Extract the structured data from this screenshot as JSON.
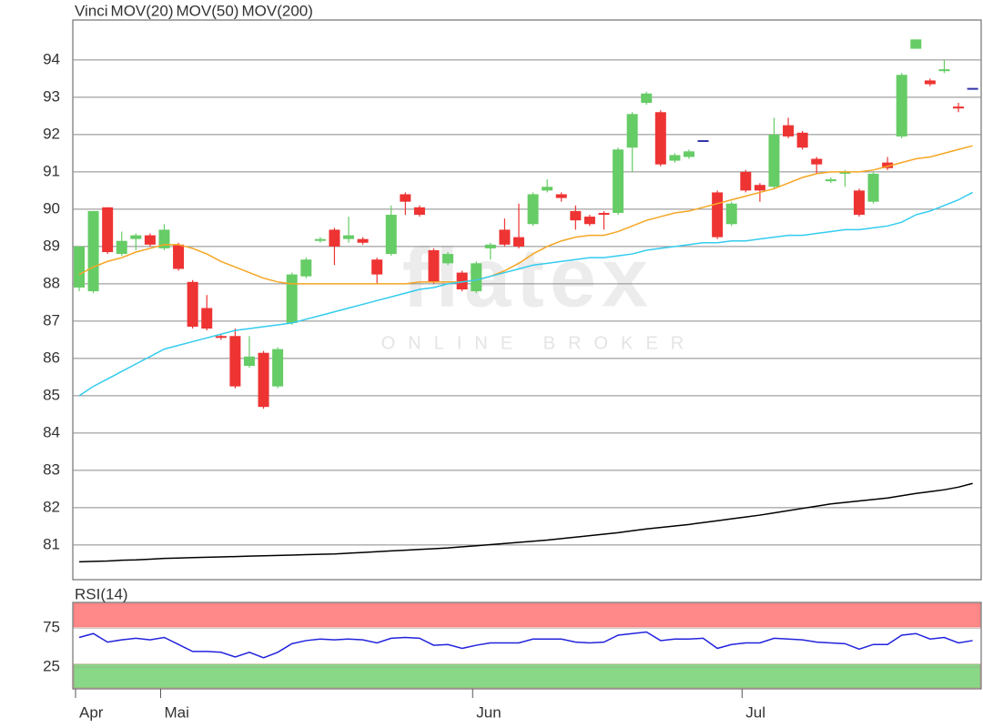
{
  "chart_data": [
    {
      "type": "candlestick",
      "watermark": {
        "brand": "flatex",
        "tagline": "ONLINE BROKER"
      },
      "categories": [
        "Apr",
        null,
        null,
        null,
        null,
        null,
        "Mai",
        null,
        null,
        null,
        null,
        null,
        null,
        null,
        null,
        null,
        null,
        null,
        null,
        null,
        null,
        null,
        null,
        null,
        null,
        null,
        null,
        null,
        "Jun",
        null,
        null,
        null,
        null,
        null,
        null,
        null,
        null,
        null,
        null,
        null,
        null,
        null,
        null,
        null,
        null,
        null,
        null,
        "Jul",
        null,
        null,
        null,
        null,
        null,
        null,
        null,
        null,
        null,
        null,
        null,
        null,
        null,
        null,
        null,
        null
      ],
      "ylim": [
        80.07,
        95.07
      ],
      "yticks": [
        81,
        82,
        83,
        84,
        85,
        86,
        87,
        88,
        89,
        90,
        91,
        92,
        93,
        94
      ],
      "grid": true,
      "up_color": "#66cc66",
      "down_color": "#ee3333",
      "doji_color": "#3333aa",
      "series": [
        {
          "name": "Vinci",
          "color": "#ff5a2b",
          "open": [
            87.9,
            87.8,
            90.05,
            88.8,
            89.2,
            89.3,
            88.95,
            89.05,
            88.05,
            87.35,
            86.6,
            86.6,
            85.8,
            86.15,
            85.25,
            86.95,
            88.2,
            89.15,
            89.45,
            89.2,
            89.2,
            88.65,
            88.8,
            90.4,
            90.05,
            88.9,
            88.55,
            88.3,
            87.8,
            88.95,
            89.45,
            89.25,
            89.6,
            90.5,
            90.4,
            89.95,
            89.8,
            89.9,
            89.9,
            91.65,
            92.85,
            92.6,
            91.3,
            91.4,
            91.85,
            90.45,
            89.6,
            91.0,
            90.65,
            90.6,
            92.25,
            92.05,
            91.35,
            90.75,
            90.95,
            90.5,
            90.2,
            91.25,
            91.95,
            94.3,
            93.45,
            93.7,
            92.75,
            93.25
          ],
          "high": [
            89.0,
            89.95,
            90.05,
            89.4,
            89.35,
            89.35,
            89.6,
            89.1,
            88.1,
            87.7,
            86.65,
            86.8,
            86.6,
            86.2,
            86.3,
            88.3,
            88.7,
            89.25,
            89.5,
            89.8,
            89.25,
            88.7,
            90.1,
            90.45,
            90.1,
            88.95,
            88.85,
            88.35,
            88.6,
            89.1,
            89.75,
            90.15,
            90.45,
            90.8,
            90.45,
            90.1,
            89.85,
            89.95,
            91.65,
            92.6,
            93.15,
            92.65,
            91.5,
            91.6,
            91.85,
            90.5,
            90.2,
            91.05,
            90.7,
            92.45,
            92.45,
            92.1,
            91.4,
            90.85,
            91.05,
            90.55,
            91.0,
            91.4,
            93.65,
            94.55,
            93.5,
            94.0,
            92.85,
            93.25
          ],
          "low": [
            87.8,
            87.75,
            88.8,
            88.75,
            88.9,
            89.0,
            88.9,
            88.35,
            86.8,
            86.75,
            86.5,
            85.2,
            85.75,
            84.65,
            85.2,
            86.9,
            88.15,
            89.1,
            88.5,
            89.1,
            89.05,
            88.0,
            88.75,
            89.85,
            89.8,
            88.0,
            88.5,
            87.8,
            87.75,
            88.65,
            89.0,
            88.95,
            89.55,
            90.45,
            90.2,
            89.45,
            89.55,
            89.45,
            89.85,
            91.0,
            92.8,
            91.15,
            91.25,
            91.35,
            91.85,
            89.2,
            89.55,
            90.45,
            90.2,
            90.55,
            91.9,
            91.6,
            90.95,
            90.7,
            90.6,
            89.8,
            90.15,
            91.05,
            91.9,
            94.3,
            93.3,
            93.65,
            92.6,
            93.25
          ],
          "close": [
            89.0,
            89.95,
            88.85,
            89.15,
            89.3,
            89.05,
            89.45,
            88.4,
            86.85,
            86.8,
            86.55,
            85.25,
            86.05,
            84.7,
            86.25,
            88.25,
            88.65,
            89.2,
            89.0,
            89.3,
            89.1,
            88.25,
            89.85,
            90.2,
            89.85,
            88.05,
            88.8,
            87.85,
            88.55,
            89.05,
            89.05,
            89.0,
            90.4,
            90.6,
            90.3,
            89.7,
            89.6,
            89.85,
            91.6,
            92.55,
            93.1,
            91.2,
            91.45,
            91.55,
            91.85,
            89.25,
            90.15,
            90.5,
            90.5,
            92.0,
            91.95,
            91.65,
            91.2,
            90.8,
            91.0,
            89.85,
            90.95,
            91.1,
            93.6,
            94.55,
            93.35,
            93.75,
            92.7,
            93.25
          ]
        },
        {
          "name": "MOV(20)",
          "color": "#f5a623",
          "values": [
            88.25,
            88.45,
            88.6,
            88.7,
            88.85,
            88.95,
            89.05,
            89.05,
            88.95,
            88.8,
            88.6,
            88.45,
            88.3,
            88.15,
            88.05,
            88.0,
            88.0,
            88.0,
            88.0,
            88.0,
            88.0,
            88.0,
            88.0,
            88.0,
            88.05,
            88.05,
            88.05,
            88.05,
            88.1,
            88.2,
            88.35,
            88.55,
            88.8,
            89.0,
            89.15,
            89.25,
            89.3,
            89.3,
            89.4,
            89.55,
            89.7,
            89.8,
            89.9,
            89.95,
            90.05,
            90.15,
            90.25,
            90.35,
            90.45,
            90.55,
            90.7,
            90.85,
            90.95,
            91.0,
            91.0,
            91.0,
            91.05,
            91.15,
            91.25,
            91.35,
            91.4,
            91.5,
            91.6,
            91.7
          ]
        },
        {
          "name": "MOV(50)",
          "color": "#33ccee",
          "values": [
            85.0,
            85.25,
            85.45,
            85.65,
            85.85,
            86.05,
            86.25,
            86.35,
            86.45,
            86.55,
            86.65,
            86.75,
            86.8,
            86.85,
            86.9,
            86.95,
            87.05,
            87.15,
            87.25,
            87.35,
            87.45,
            87.55,
            87.65,
            87.75,
            87.85,
            87.9,
            88.0,
            88.05,
            88.1,
            88.2,
            88.3,
            88.4,
            88.5,
            88.55,
            88.6,
            88.65,
            88.7,
            88.7,
            88.75,
            88.8,
            88.9,
            88.95,
            89.0,
            89.05,
            89.1,
            89.1,
            89.15,
            89.15,
            89.2,
            89.25,
            89.3,
            89.3,
            89.35,
            89.4,
            89.45,
            89.45,
            89.5,
            89.55,
            89.65,
            89.85,
            89.95,
            90.1,
            90.25,
            90.45
          ]
        },
        {
          "name": "MOV(200)",
          "color": "#000000",
          "values": [
            80.55,
            80.56,
            80.57,
            80.59,
            80.6,
            80.62,
            80.64,
            80.65,
            80.66,
            80.67,
            80.68,
            80.69,
            80.7,
            80.71,
            80.72,
            80.73,
            80.74,
            80.75,
            80.76,
            80.78,
            80.8,
            80.82,
            80.84,
            80.86,
            80.88,
            80.9,
            80.92,
            80.95,
            80.98,
            81.01,
            81.04,
            81.07,
            81.1,
            81.13,
            81.17,
            81.21,
            81.25,
            81.29,
            81.33,
            81.38,
            81.43,
            81.47,
            81.51,
            81.55,
            81.6,
            81.65,
            81.7,
            81.75,
            81.8,
            81.86,
            81.92,
            81.98,
            82.04,
            82.1,
            82.14,
            82.18,
            82.22,
            82.26,
            82.32,
            82.38,
            82.43,
            82.48,
            82.55,
            82.65
          ]
        }
      ]
    },
    {
      "type": "line",
      "ylim": [
        -3,
        108
      ],
      "yticks": [
        25,
        75
      ],
      "bands": [
        {
          "from": 75,
          "to": 108,
          "color": "#ff8888"
        },
        {
          "from": -3,
          "to": 30,
          "color": "#88d888"
        }
      ],
      "series": [
        {
          "name": "RSI(14)",
          "color": "#2222dd",
          "values": [
            63,
            68,
            57,
            60,
            62,
            60,
            63,
            54,
            45,
            45,
            44,
            38,
            44,
            37,
            44,
            55,
            59,
            61,
            60,
            61,
            60,
            56,
            62,
            63,
            62,
            53,
            54,
            49,
            53,
            56,
            56,
            56,
            61,
            61,
            61,
            57,
            56,
            57,
            66,
            68,
            70,
            59,
            61,
            61,
            62,
            49,
            54,
            56,
            56,
            62,
            61,
            60,
            57,
            56,
            55,
            48,
            54,
            54,
            66,
            68,
            61,
            63,
            56,
            59
          ]
        }
      ]
    }
  ]
}
